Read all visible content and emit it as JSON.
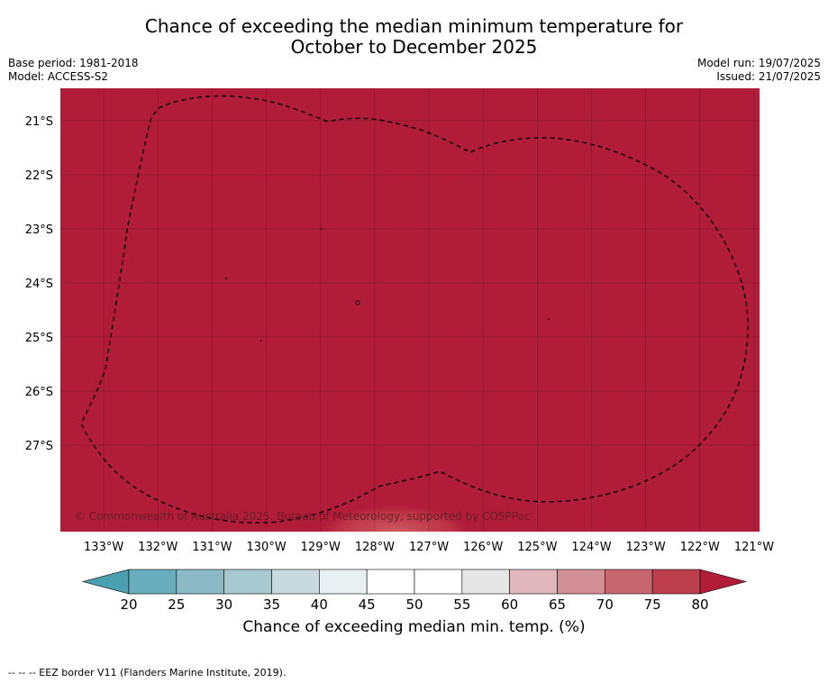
{
  "title": {
    "line1": "Chance of exceeding the median minimum temperature for",
    "line2": "October to December 2025"
  },
  "meta": {
    "base_period": "Base period: 1981-2018",
    "model": "Model: ACCESS-S2",
    "model_run": "Model run: 19/07/2025",
    "issued": "Issued: 21/07/2025"
  },
  "map": {
    "fill_color": "#b11c39",
    "highlight_color": "#d5676f",
    "lat_labels": [
      "21°S",
      "22°S",
      "23°S",
      "24°S",
      "25°S",
      "26°S",
      "27°S"
    ],
    "lat_values": [
      -21,
      -22,
      -23,
      -24,
      -25,
      -26,
      -27
    ],
    "lon_labels": [
      "133°W",
      "132°W",
      "131°W",
      "130°W",
      "129°W",
      "128°W",
      "127°W",
      "126°W",
      "125°W",
      "124°W",
      "123°W",
      "122°W",
      "121°W"
    ],
    "lon_values": [
      -133,
      -132,
      -131,
      -130,
      -129,
      -128,
      -127,
      -126,
      -125,
      -124,
      -123,
      -122,
      -121
    ],
    "lat_range": [
      -28.6,
      -20.4
    ],
    "lon_range": [
      -133.8,
      -120.9
    ],
    "copyright": "© Commonwealth of Australia 2025, Bureau of Meteorology, supported by COSPPac",
    "eez_border_legend": "--  --  -- EEZ border V11 (Flanders Marine Institute, 2019)."
  },
  "colorbar": {
    "title": "Chance of exceeding median min. temp. (%)",
    "ticks": [
      "20",
      "25",
      "30",
      "35",
      "40",
      "45",
      "50",
      "55",
      "60",
      "65",
      "70",
      "75",
      "80"
    ],
    "colors": [
      "#6aaebd",
      "#8bbac6",
      "#a9c9d0",
      "#c9dadf",
      "#e9f0f2",
      "#ffffff",
      "#ffffff",
      "#e6e6e6",
      "#e0b7bc",
      "#d38f96",
      "#c86670",
      "#bd3f4e"
    ],
    "under_color": "#4aa0ae",
    "over_color": "#b11c39"
  }
}
